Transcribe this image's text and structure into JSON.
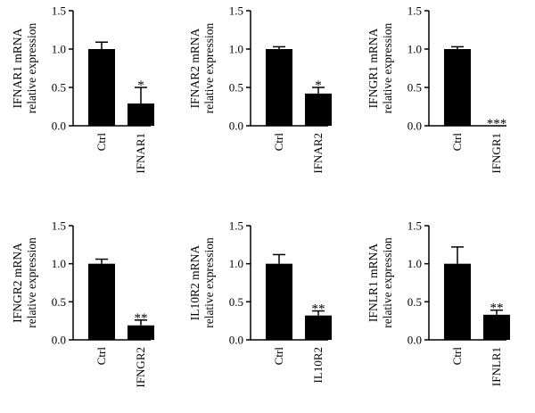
{
  "chart_data": [
    {
      "type": "bar",
      "ylabel_line1": "IFNAR1 mRNA",
      "ylabel_line2": "relative expression",
      "categories": [
        "Ctrl",
        "IFNAR1"
      ],
      "values": [
        1.0,
        0.29
      ],
      "errors": [
        0.09,
        0.21
      ],
      "significance": [
        "",
        "*"
      ],
      "yticks": [
        "0.0",
        "0.5",
        "1.0",
        "1.5"
      ],
      "ylim": [
        0,
        1.5
      ]
    },
    {
      "type": "bar",
      "ylabel_line1": "IFNAR2 mRNA",
      "ylabel_line2": "relative expression",
      "categories": [
        "Ctrl",
        "IFNAR2"
      ],
      "values": [
        1.0,
        0.42
      ],
      "errors": [
        0.03,
        0.08
      ],
      "significance": [
        "",
        "*"
      ],
      "yticks": [
        "0.0",
        "0.5",
        "1.0",
        "1.5"
      ],
      "ylim": [
        0,
        1.5
      ]
    },
    {
      "type": "bar",
      "ylabel_line1": "IFNGR1 mRNA",
      "ylabel_line2": "relative expression",
      "categories": [
        "Ctrl",
        "IFNGR1"
      ],
      "values": [
        1.0,
        0.0
      ],
      "errors": [
        0.03,
        0.0
      ],
      "significance": [
        "",
        "***"
      ],
      "yticks": [
        "0.0",
        "0.5",
        "1.0",
        "1.5"
      ],
      "ylim": [
        0,
        1.5
      ]
    },
    {
      "type": "bar",
      "ylabel_line1": "IFNGR2 mRNA",
      "ylabel_line2": "relative expression",
      "categories": [
        "Ctrl",
        "IFNGR2"
      ],
      "values": [
        1.0,
        0.19
      ],
      "errors": [
        0.06,
        0.07
      ],
      "significance": [
        "",
        "**"
      ],
      "yticks": [
        "0.0",
        "0.5",
        "1.0",
        "1.5"
      ],
      "ylim": [
        0,
        1.5
      ]
    },
    {
      "type": "bar",
      "ylabel_line1": "IL10R2 mRNA",
      "ylabel_line2": "relative expression",
      "categories": [
        "Ctrl",
        "IL10R2"
      ],
      "values": [
        1.0,
        0.32
      ],
      "errors": [
        0.12,
        0.06
      ],
      "significance": [
        "",
        "**"
      ],
      "yticks": [
        "0.0",
        "0.5",
        "1.0",
        "1.5"
      ],
      "ylim": [
        0,
        1.5
      ]
    },
    {
      "type": "bar",
      "ylabel_line1": "IFNLR1 mRNA",
      "ylabel_line2": "relative expression",
      "categories": [
        "Ctrl",
        "IFNLR1"
      ],
      "values": [
        1.0,
        0.33
      ],
      "errors": [
        0.22,
        0.06
      ],
      "significance": [
        "",
        "**"
      ],
      "yticks": [
        "0.0",
        "0.5",
        "1.0",
        "1.5"
      ],
      "ylim": [
        0,
        1.5
      ]
    }
  ]
}
